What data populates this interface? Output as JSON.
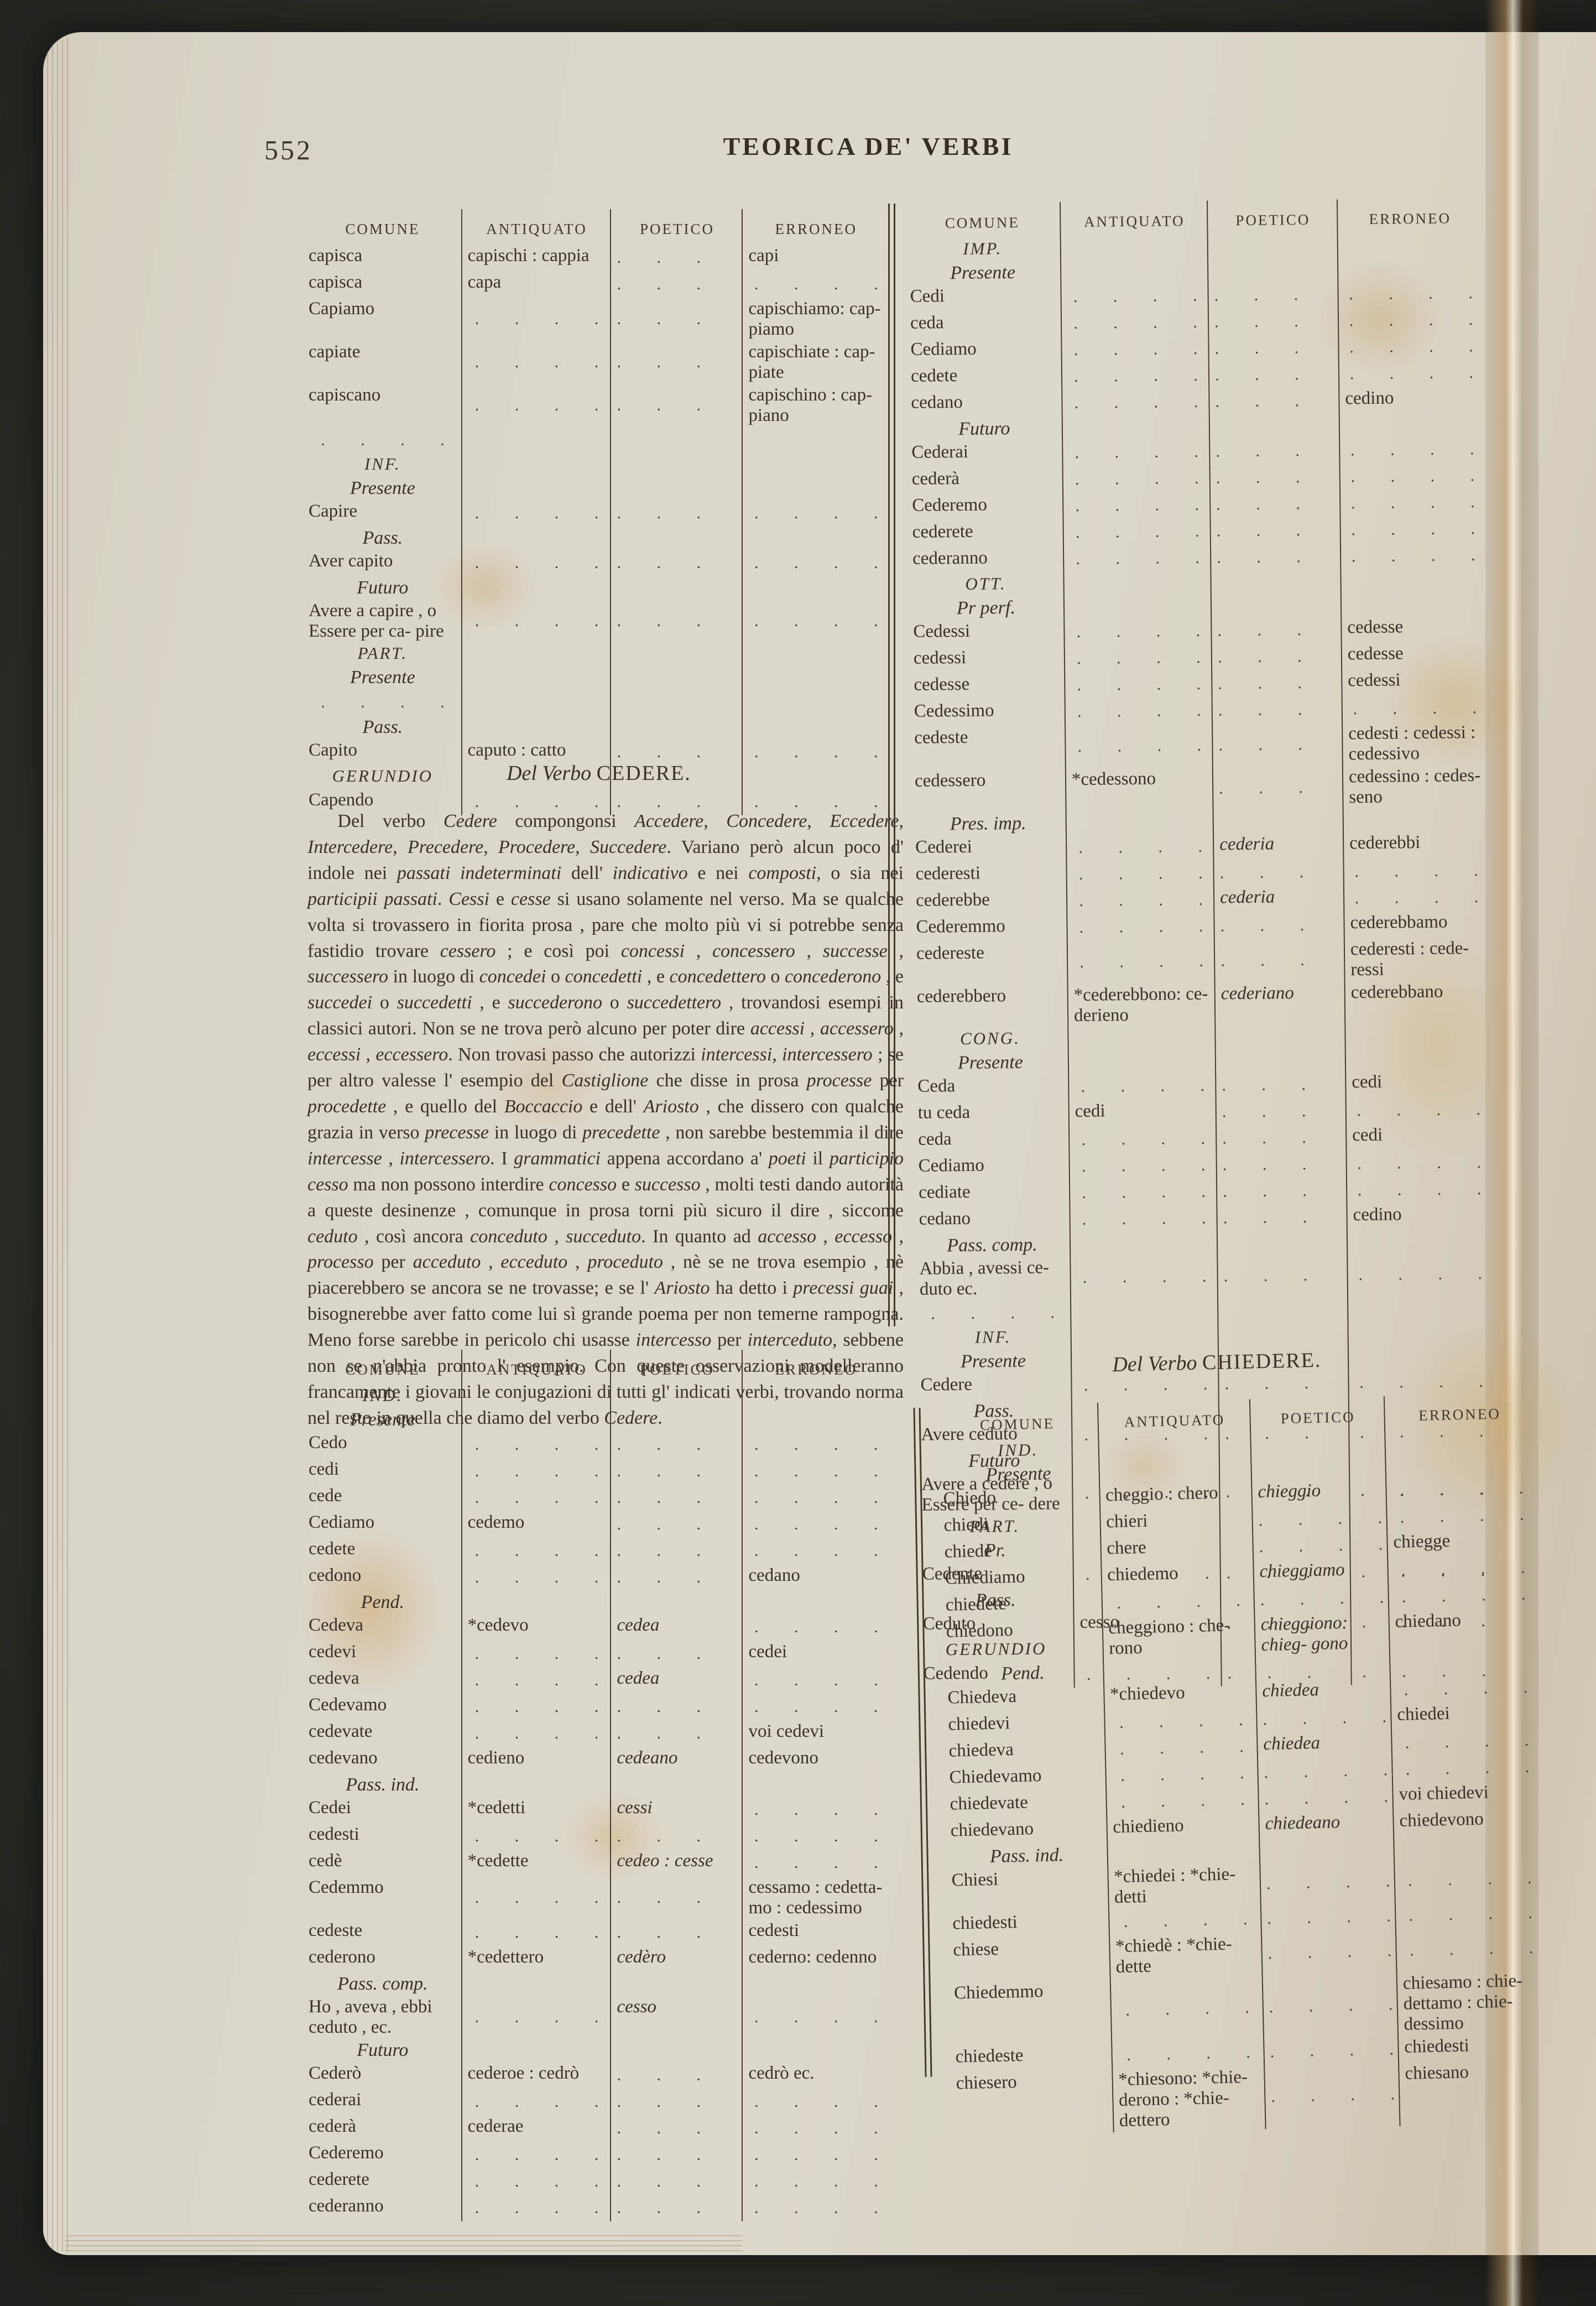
{
  "page": {
    "number": "552",
    "running_title": "TEORICA DE' VERBI"
  },
  "dots": ". . . .",
  "column_headers": [
    "COMUNE",
    "ANTIQUATO",
    "POETICO",
    "ERRONEO"
  ],
  "headings": {
    "cedere": {
      "lead": "Del Verbo",
      "verb": "CEDERE."
    },
    "chiedere": {
      "lead": "Del Verbo",
      "verb": "CHIEDERE."
    }
  },
  "paragraph": "Del verbo *Cedere* compongonsi *Accedere*, *Concedere*, *Eccedere*, *Intercedere*, *Precedere*, *Procedere*, *Succedere*. Variano però alcun poco d' indole nei *passati indeterminati* dell' *indicativo* e nei *composti*, o sia nei *participii passati*. *Cessi* e *cesse* si usano solamente nel verso. Ma se qualche volta si trovassero in fiorita prosa , pare che molto più vi si potrebbe senza fastidio trovare *cessero* ; e così poi *concessi* , *concessero* , *successe* , *successero* in luogo di *concedei* o *concedetti* , e *concedettero* o *concederono* , e *succedei* o *succedetti* , e *succederono* o *succedettero* , trovandosi esempi in classici autori. Non se ne trova però alcuno per poter dire *accessi* , *accessero* , *eccessi* , *eccessero*. Non trovasi passo che autorizzi *intercessi*, *intercessero* ; se per altro valesse l' esempio del *Castiglione* che disse in prosa *processe* per *procedette* , e quello del *Boccaccio* e dell' *Ariosto* , che dissero con qualche grazia in verso *precesse* in luogo di *precedette* , non sarebbe bestemmia il dire *intercesse* , *intercessero*. I *grammatici* appena accordano a' *poeti* il *participio cesso* ma non possono interdire *concesso* e *successo* , molti testi dando autorità a queste desinenze , comunque in prosa torni più sicuro il dire , siccome *ceduto* , così ancora *conceduto* , *succeduto*. In quanto ad *accesso* , *eccesso* , *processo* per *acceduto* , *ecceduto* , *proceduto* , nè se ne trova esempio , nè piacerebbero se ancora se ne trovasse; e se l' *Ariosto* ha detto i *precessi guai* , bisognerebbe aver fatto come lui sì grande poema per non temerne rampogna. Meno forse sarebbe in pericolo chi usasse *intercesso* per *interceduto*, sebbene non se n'abbia pronto l' esempio. Con queste osservazioni modelleranno francamente i giovani le conjugazioni di tutti gl' indicati verbi, trovando norma nel resto in quella che diamo del verbo *Cedere*.",
  "tables": {
    "capire_top": {
      "rows": [
        {
          "c": [
            "capisca",
            "capischi : cappia",
            "",
            "capi"
          ]
        },
        {
          "c": [
            "capisca",
            "capa",
            "",
            ""
          ]
        },
        {
          "c": [
            "Capiamo",
            "",
            "",
            "capischiamo: cap- piamo"
          ]
        },
        {
          "c": [
            "capiate",
            "",
            "",
            "capischiate : cap- piate"
          ]
        },
        {
          "c": [
            "capiscano",
            "",
            "",
            "capischino : cap- piano"
          ]
        },
        {
          "c": [
            "",
            null,
            null,
            null
          ]
        },
        {
          "s": "INF.",
          "st": "sc"
        },
        {
          "s": "Presente",
          "st": "it"
        },
        {
          "c": [
            "Capire",
            "",
            "",
            ""
          ]
        },
        {
          "s": "Pass.",
          "st": "it"
        },
        {
          "c": [
            "Aver capito",
            "",
            "",
            ""
          ]
        },
        {
          "s": "Futuro",
          "st": "it"
        },
        {
          "c": [
            "Avere a capire , o Essere per ca- pire",
            "",
            "",
            ""
          ]
        },
        {
          "s": "PART.",
          "st": "sc"
        },
        {
          "s": "Presente",
          "st": "it"
        },
        {
          "c": [
            "",
            null,
            null,
            null
          ]
        },
        {
          "s": "Pass.",
          "st": "it"
        },
        {
          "c": [
            "Capito",
            "caputo : catto",
            "",
            ""
          ]
        },
        {
          "s": "GERUNDIO",
          "st": "sc"
        },
        {
          "c": [
            "Capendo",
            "",
            "",
            ""
          ]
        }
      ]
    },
    "cedere_imp": {
      "rows": [
        {
          "s": "IMP.",
          "st": "sc"
        },
        {
          "s": "Presente",
          "st": "it"
        },
        {
          "c": [
            "Cedi",
            "",
            "",
            ""
          ]
        },
        {
          "c": [
            "ceda",
            "",
            "",
            ""
          ]
        },
        {
          "c": [
            "Cediamo",
            "",
            "",
            ""
          ]
        },
        {
          "c": [
            "cedete",
            "",
            "",
            ""
          ]
        },
        {
          "c": [
            "cedano",
            "",
            "",
            "cedino"
          ]
        },
        {
          "s": "Futuro",
          "st": "it"
        },
        {
          "c": [
            "Cederai",
            "",
            "",
            ""
          ]
        },
        {
          "c": [
            "cederà",
            "",
            "",
            ""
          ]
        },
        {
          "c": [
            "Cederemo",
            "",
            "",
            ""
          ]
        },
        {
          "c": [
            "cederete",
            "",
            "",
            ""
          ]
        },
        {
          "c": [
            "cederanno",
            "",
            "",
            ""
          ]
        },
        {
          "s": "OTT.",
          "st": "sc"
        },
        {
          "s": "Pr perf.",
          "st": "it"
        },
        {
          "c": [
            "Cedessi",
            "",
            "",
            "cedesse"
          ]
        },
        {
          "c": [
            "cedessi",
            "",
            "",
            "cedesse"
          ]
        },
        {
          "c": [
            "cedesse",
            "",
            "",
            "cedessi"
          ]
        },
        {
          "c": [
            "Cedessimo",
            "",
            "",
            ""
          ]
        },
        {
          "c": [
            "cedeste",
            "",
            "",
            "cedesti : cedessi : cedessivo"
          ]
        },
        {
          "c": [
            "cedessero",
            "*cedessono",
            "",
            "cedessino : cedes- seno"
          ]
        },
        {
          "s": "Pres. imp.",
          "st": "it"
        },
        {
          "c": [
            "Cederei",
            "",
            "cederia",
            "cederebbi"
          ]
        },
        {
          "c": [
            "cederesti",
            "",
            "",
            ""
          ]
        },
        {
          "c": [
            "cederebbe",
            "",
            "cederia",
            ""
          ]
        },
        {
          "c": [
            "Cederemmo",
            "",
            "",
            "cederebbamo"
          ]
        },
        {
          "c": [
            "cedereste",
            "",
            "",
            "cederesti : cede- ressi"
          ]
        },
        {
          "c": [
            "cederebbero",
            "*cederebbono: ce- derieno",
            "cederiano",
            "cederebbano"
          ]
        },
        {
          "s": "CONG.",
          "st": "sc"
        },
        {
          "s": "Presente",
          "st": "it"
        },
        {
          "c": [
            "Ceda",
            "",
            "",
            "cedi"
          ]
        },
        {
          "c": [
            "tu ceda",
            "cedi",
            "",
            ""
          ]
        },
        {
          "c": [
            "ceda",
            "",
            "",
            "cedi"
          ]
        },
        {
          "c": [
            "Cediamo",
            "",
            "",
            ""
          ]
        },
        {
          "c": [
            "cediate",
            "",
            "",
            ""
          ]
        },
        {
          "c": [
            "cedano",
            "",
            "",
            "cedino"
          ]
        },
        {
          "s": "Pass. comp.",
          "st": "it"
        },
        {
          "c": [
            "Abbia , avessi ce- duto ec.",
            "",
            "",
            ""
          ]
        },
        {
          "c": [
            "",
            null,
            null,
            null
          ]
        },
        {
          "s": "INF.",
          "st": "sc"
        },
        {
          "s": "Presente",
          "st": "it"
        },
        {
          "c": [
            "Cedere",
            "",
            "",
            ""
          ]
        },
        {
          "s": "Pass.",
          "st": "it"
        },
        {
          "c": [
            "Avere ceduto",
            "",
            "",
            ""
          ]
        },
        {
          "s": "Futuro",
          "st": "it"
        },
        {
          "c": [
            "Avere a cedere , o Essere per ce- dere",
            "",
            "",
            ""
          ]
        },
        {
          "s": "PART.",
          "st": "sc"
        },
        {
          "s": "Pr.",
          "st": "it"
        },
        {
          "c": [
            "Cedente",
            "",
            "",
            ""
          ]
        },
        {
          "s": "Pass.",
          "st": "it"
        },
        {
          "c": [
            "Ceduto",
            "cesso",
            "",
            ""
          ]
        },
        {
          "s": "GERUNDIO",
          "st": "sc"
        },
        {
          "c": [
            "Cedendo",
            "",
            "",
            ""
          ]
        }
      ]
    },
    "cedere_ind": {
      "rows": [
        {
          "s": "IND.",
          "st": "sc"
        },
        {
          "s": "Presente",
          "st": "it"
        },
        {
          "c": [
            "Cedo",
            "",
            "",
            ""
          ]
        },
        {
          "c": [
            "cedi",
            "",
            "",
            ""
          ]
        },
        {
          "c": [
            "cede",
            "",
            "",
            ""
          ]
        },
        {
          "c": [
            "Cediamo",
            "cedemo",
            "",
            ""
          ]
        },
        {
          "c": [
            "cedete",
            "",
            "",
            ""
          ]
        },
        {
          "c": [
            "cedono",
            "",
            "",
            "cedano"
          ]
        },
        {
          "s": "Pend.",
          "st": "it"
        },
        {
          "c": [
            "Cedeva",
            "*cedevo",
            "cedea",
            ""
          ]
        },
        {
          "c": [
            "cedevi",
            "",
            "",
            "cedei"
          ]
        },
        {
          "c": [
            "cedeva",
            "",
            "cedea",
            ""
          ]
        },
        {
          "c": [
            "Cedevamo",
            "",
            "",
            ""
          ]
        },
        {
          "c": [
            "cedevate",
            "",
            "",
            "voi cedevi"
          ]
        },
        {
          "c": [
            "cedevano",
            "cedieno",
            "cedeano",
            "cedevono"
          ]
        },
        {
          "s": "Pass. ind.",
          "st": "it"
        },
        {
          "c": [
            "Cedei",
            "*cedetti",
            "cessi",
            ""
          ]
        },
        {
          "c": [
            "cedesti",
            "",
            "",
            ""
          ]
        },
        {
          "c": [
            "cedè",
            "*cedette",
            "cedeo : cesse",
            ""
          ]
        },
        {
          "c": [
            "Cedemmo",
            "",
            "",
            "cessamo : cedetta- mo : cedessimo"
          ]
        },
        {
          "c": [
            "cedeste",
            "",
            "",
            "cedesti"
          ]
        },
        {
          "c": [
            "cederono",
            "*cedettero",
            "cedèro",
            "cederno: cedenno"
          ]
        },
        {
          "s": "Pass. comp.",
          "st": "it"
        },
        {
          "c": [
            "Ho , aveva , ebbi ceduto , ec.",
            "",
            "cesso",
            ""
          ]
        },
        {
          "s": "Futuro",
          "st": "it"
        },
        {
          "c": [
            "Cederò",
            "cederoe : cedrò",
            "",
            "cedrò ec."
          ]
        },
        {
          "c": [
            "cederai",
            "",
            "",
            ""
          ]
        },
        {
          "c": [
            "cederà",
            "cederae",
            "",
            ""
          ]
        },
        {
          "c": [
            "Cederemo",
            "",
            "",
            ""
          ]
        },
        {
          "c": [
            "cederete",
            "",
            "",
            ""
          ]
        },
        {
          "c": [
            "cederanno",
            "",
            "",
            ""
          ]
        }
      ]
    },
    "chiedere_ind": {
      "rows": [
        {
          "s": "IND.",
          "st": "sc"
        },
        {
          "s": "Presente",
          "st": "it"
        },
        {
          "c": [
            "Chiedo",
            "cheggio : chero",
            "chieggio",
            ""
          ]
        },
        {
          "c": [
            "chiedi",
            "chieri",
            "",
            ""
          ]
        },
        {
          "c": [
            "chiede",
            "chere",
            "",
            "chiegge"
          ]
        },
        {
          "c": [
            "Chiediamo",
            "chiedemo",
            "chieggiamo",
            ""
          ]
        },
        {
          "c": [
            "chiedete",
            "",
            "",
            ""
          ]
        },
        {
          "c": [
            "chiedono",
            "cheggiono : che- rono",
            "chieggiono: chieg- gono",
            "chiedano"
          ]
        },
        {
          "s": "Pend.",
          "st": "it"
        },
        {
          "c": [
            "Chiedeva",
            "*chiedevo",
            "chiedea",
            ""
          ]
        },
        {
          "c": [
            "chiedevi",
            "",
            "",
            "chiedei"
          ]
        },
        {
          "c": [
            "chiedeva",
            "",
            "chiedea",
            ""
          ]
        },
        {
          "c": [
            "Chiedevamo",
            "",
            "",
            ""
          ]
        },
        {
          "c": [
            "chiedevate",
            "",
            "",
            "voi chiedevi"
          ]
        },
        {
          "c": [
            "chiedevano",
            "chiedieno",
            "chiedeano",
            "chiedevono"
          ]
        },
        {
          "s": "Pass. ind.",
          "st": "it"
        },
        {
          "c": [
            "Chiesi",
            "*chiedei : *chie- detti",
            "",
            ""
          ]
        },
        {
          "c": [
            "chiedesti",
            "",
            "",
            ""
          ]
        },
        {
          "c": [
            "chiese",
            "*chiedè : *chie- dette",
            "",
            ""
          ]
        },
        {
          "c": [
            "Chiedemmo",
            "",
            "",
            "chiesamo : chie- dettamo : chie- dessimo"
          ]
        },
        {
          "c": [
            "chiedeste",
            "",
            "",
            "chiedesti"
          ]
        },
        {
          "c": [
            "chiesero",
            "*chiesono: *chie- derono : *chie- dettero",
            "",
            "chiesano"
          ]
        }
      ]
    }
  }
}
